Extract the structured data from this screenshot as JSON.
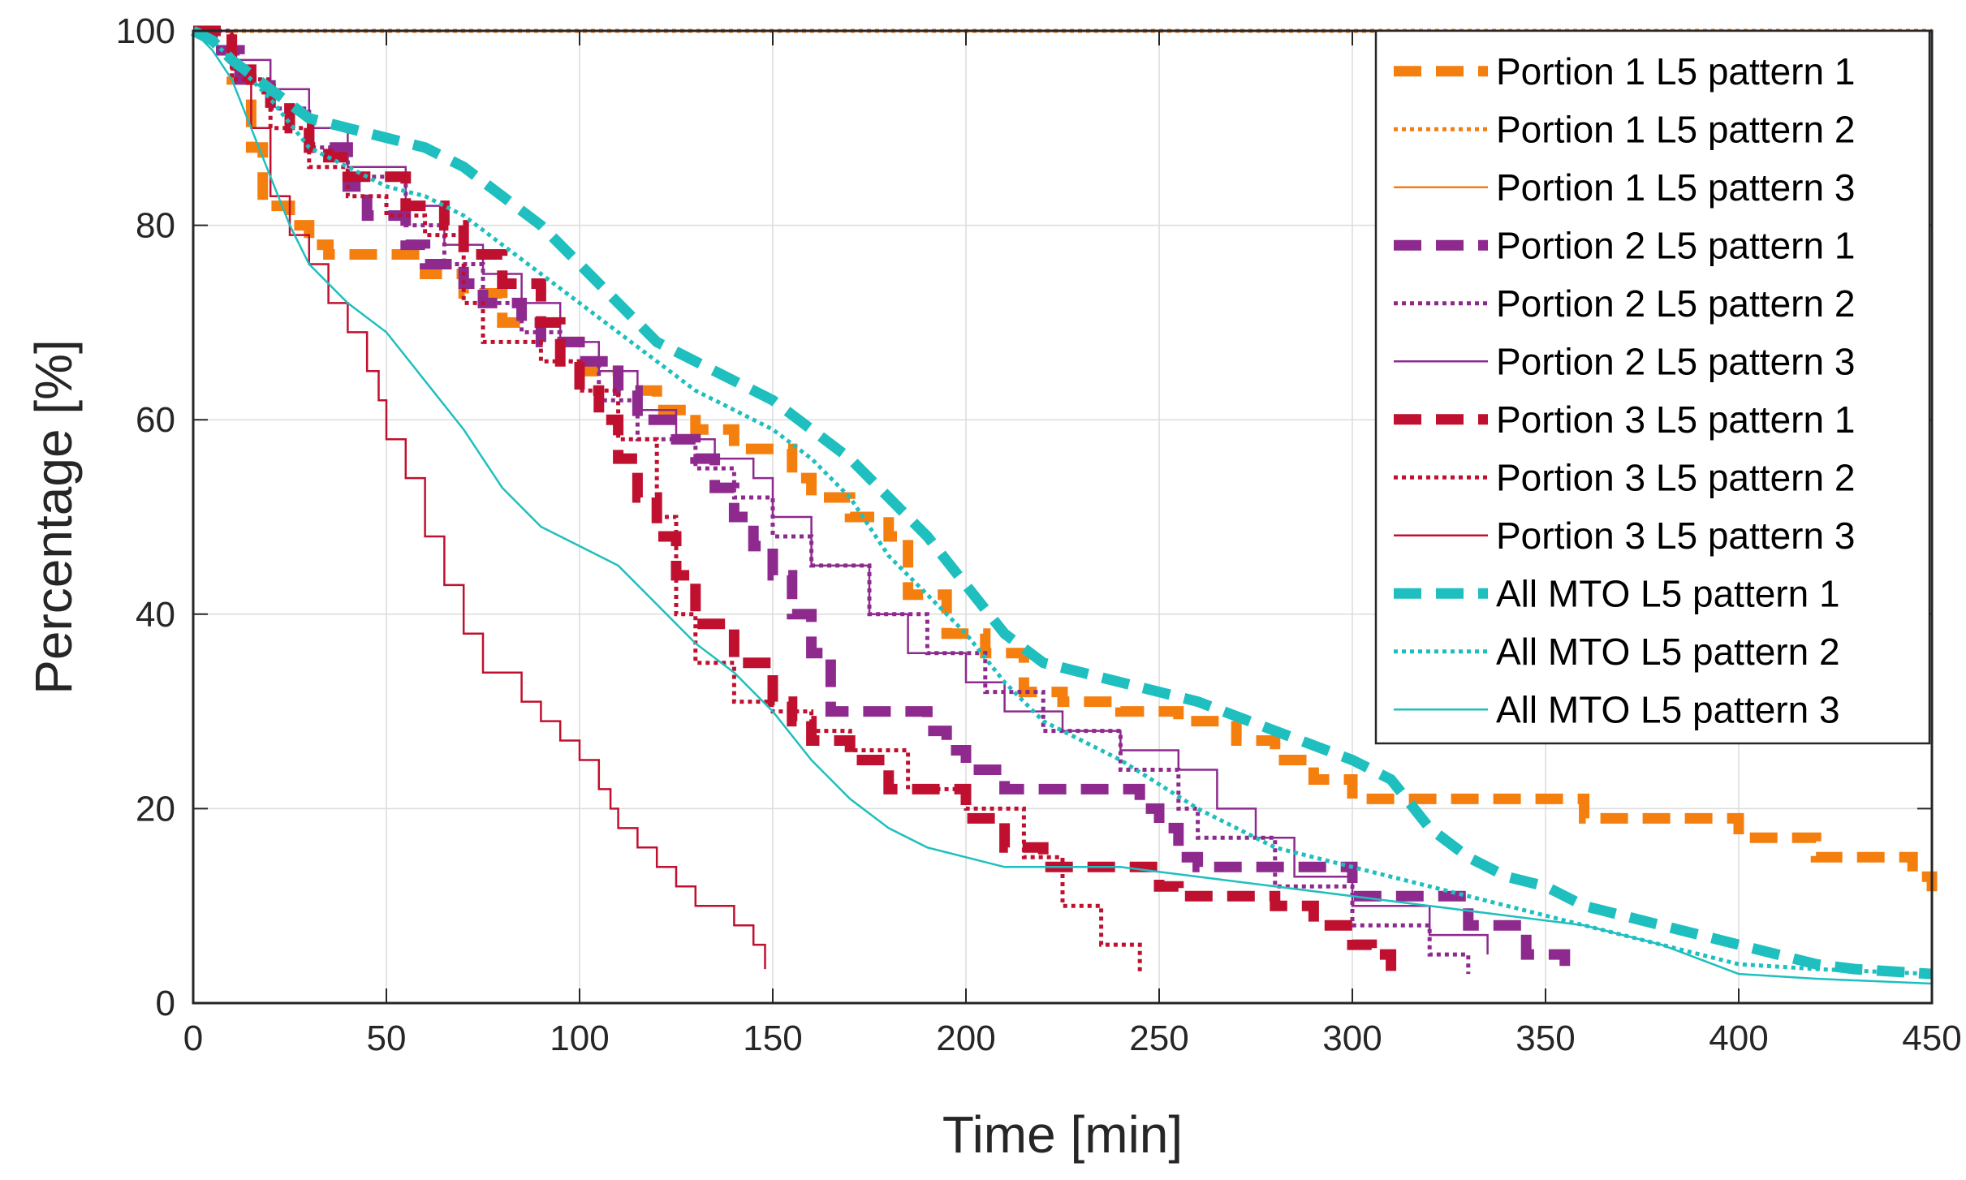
{
  "chart_data": {
    "type": "line",
    "title": "",
    "xlabel": "Time [min]",
    "ylabel": "Percentage [%]",
    "xlim": [
      0,
      450
    ],
    "ylim": [
      0,
      100
    ],
    "xticks": [
      0,
      50,
      100,
      150,
      200,
      250,
      300,
      350,
      400,
      450
    ],
    "yticks": [
      0,
      20,
      40,
      60,
      80,
      100
    ],
    "grid": true,
    "legend_position": "top-right",
    "series": [
      {
        "name": "Portion 1 L5 pattern 1",
        "color": "#F47F0F",
        "style": "dashed-thick",
        "step": true,
        "x": [
          0,
          10,
          15,
          18,
          25,
          30,
          35,
          60,
          70,
          80,
          90,
          100,
          110,
          120,
          130,
          140,
          155,
          160,
          170,
          180,
          185,
          195,
          205,
          215,
          225,
          240,
          255,
          270,
          280,
          290,
          300,
          320,
          340,
          350,
          360,
          385,
          400,
          420,
          445,
          450
        ],
        "y": [
          100,
          95,
          88,
          82,
          80,
          78,
          77,
          75,
          73,
          70,
          68,
          65,
          63,
          61,
          59,
          57,
          54,
          52,
          50,
          48,
          42,
          38,
          36,
          32,
          31,
          30,
          29,
          27,
          25,
          23,
          21,
          21,
          21,
          21,
          19,
          19,
          17,
          15,
          13,
          11.5
        ]
      },
      {
        "name": "Portion 1 L5 pattern 2",
        "color": "#F47F0F",
        "style": "dotted",
        "step": true,
        "x": [
          0,
          450
        ],
        "y": [
          100,
          100
        ]
      },
      {
        "name": "Portion 1 L5 pattern 3",
        "color": "#F47F0F",
        "style": "solid-thin",
        "step": true,
        "x": [
          0,
          450
        ],
        "y": [
          100,
          100
        ]
      },
      {
        "name": "Portion 2 L5 pattern 1",
        "color": "#8E2A8E",
        "style": "dashed-thick",
        "step": true,
        "x": [
          0,
          5,
          12,
          20,
          25,
          30,
          40,
          45,
          55,
          60,
          70,
          75,
          85,
          90,
          100,
          110,
          115,
          125,
          130,
          135,
          140,
          145,
          150,
          155,
          160,
          165,
          185,
          190,
          195,
          200,
          210,
          220,
          230,
          245,
          250,
          255,
          260,
          270,
          290,
          300,
          330,
          345,
          350,
          355
        ],
        "y": [
          100,
          98,
          95,
          92,
          90,
          88,
          84,
          81,
          78,
          76,
          74,
          72,
          70,
          68,
          66,
          63,
          60,
          58,
          56,
          53,
          50,
          47,
          44,
          40,
          36,
          30,
          30,
          28,
          26,
          24,
          22,
          22,
          22,
          20,
          18,
          15,
          14,
          14,
          14,
          11,
          8,
          5,
          5,
          3
        ]
      },
      {
        "name": "Portion 2 L5 pattern 2",
        "color": "#8E2A8E",
        "style": "dotted",
        "step": true,
        "x": [
          0,
          10,
          20,
          30,
          40,
          55,
          65,
          75,
          85,
          95,
          105,
          115,
          130,
          140,
          150,
          160,
          175,
          190,
          205,
          220,
          240,
          255,
          260,
          280,
          300,
          320,
          330
        ],
        "y": [
          100,
          95,
          92,
          88,
          85,
          80,
          76,
          72,
          69,
          66,
          62,
          58,
          55,
          52,
          48,
          45,
          40,
          36,
          32,
          28,
          24,
          20,
          17,
          12,
          8,
          5,
          3
        ]
      },
      {
        "name": "Portion 2 L5 pattern 3",
        "color": "#8E2A8E",
        "style": "solid-thin",
        "step": true,
        "x": [
          0,
          10,
          20,
          30,
          40,
          55,
          65,
          75,
          85,
          95,
          105,
          115,
          125,
          135,
          145,
          150,
          160,
          175,
          185,
          200,
          210,
          225,
          240,
          255,
          265,
          275,
          285,
          300,
          320,
          335
        ],
        "y": [
          100,
          97,
          94,
          90,
          86,
          82,
          78,
          75,
          72,
          68,
          65,
          61,
          58,
          56,
          54,
          50,
          45,
          40,
          36,
          33,
          30,
          28,
          26,
          24,
          20,
          17,
          13,
          10,
          7,
          5
        ]
      },
      {
        "name": "Portion 3 L5 pattern 1",
        "color": "#C0102F",
        "style": "dashed-thick",
        "step": true,
        "x": [
          0,
          10,
          15,
          20,
          25,
          30,
          35,
          40,
          45,
          55,
          65,
          70,
          80,
          90,
          95,
          100,
          105,
          110,
          115,
          120,
          125,
          130,
          140,
          150,
          155,
          160,
          170,
          180,
          200,
          210,
          220,
          240,
          245,
          250,
          255,
          260,
          270,
          280,
          290,
          300,
          305,
          310
        ],
        "y": [
          100,
          96,
          94,
          92,
          90,
          88,
          87,
          85,
          85,
          82,
          80,
          77,
          74,
          70,
          66,
          63,
          60,
          56,
          52,
          48,
          44,
          39,
          35,
          31,
          29,
          27,
          25,
          22,
          19,
          16,
          14,
          14,
          14,
          12,
          11,
          11,
          11,
          10,
          8,
          6,
          5,
          3
        ]
      },
      {
        "name": "Portion 3 L5 pattern 2",
        "color": "#C0102F",
        "style": "dotted",
        "step": true,
        "x": [
          0,
          10,
          20,
          30,
          40,
          50,
          60,
          70,
          75,
          90,
          100,
          110,
          120,
          125,
          130,
          140,
          150,
          160,
          170,
          185,
          200,
          215,
          225,
          235,
          245
        ],
        "y": [
          100,
          95,
          90,
          86,
          83,
          81,
          79,
          72,
          68,
          66,
          63,
          58,
          50,
          40,
          35,
          31,
          30,
          28,
          26,
          22,
          20,
          15,
          10,
          6,
          3
        ]
      },
      {
        "name": "Portion 3 L5 pattern 3",
        "color": "#C0102F",
        "style": "solid-thin",
        "step": true,
        "x": [
          0,
          10,
          15,
          20,
          25,
          30,
          35,
          40,
          45,
          48,
          50,
          55,
          60,
          65,
          70,
          75,
          85,
          90,
          95,
          100,
          105,
          108,
          110,
          115,
          120,
          125,
          130,
          140,
          145,
          148
        ],
        "y": [
          100,
          96,
          90,
          83,
          79,
          76,
          72,
          69,
          65,
          62,
          58,
          54,
          48,
          43,
          38,
          34,
          31,
          29,
          27,
          25,
          22,
          20,
          18,
          16,
          14,
          12,
          10,
          8,
          6,
          3.5
        ]
      },
      {
        "name": "All MTO L5 pattern 1",
        "color": "#1FBFBF",
        "style": "dashed-thick",
        "step": false,
        "x": [
          0,
          5,
          10,
          20,
          30,
          50,
          60,
          70,
          80,
          90,
          100,
          110,
          120,
          130,
          150,
          160,
          170,
          180,
          190,
          200,
          210,
          220,
          240,
          260,
          280,
          300,
          310,
          320,
          330,
          340,
          350,
          360,
          370,
          380,
          390,
          400,
          410,
          420,
          430,
          450
        ],
        "y": [
          100,
          99,
          97,
          94,
          91,
          89,
          88,
          86,
          83,
          80,
          76,
          72,
          68,
          66,
          62,
          59,
          56,
          52,
          48,
          43,
          38,
          35,
          33,
          31,
          28,
          25,
          23,
          18,
          15,
          13,
          12,
          10,
          9,
          8,
          7,
          6,
          5,
          4,
          3.5,
          3
        ]
      },
      {
        "name": "All MTO L5 pattern 2",
        "color": "#1FBFBF",
        "style": "dotted",
        "step": false,
        "x": [
          0,
          5,
          10,
          20,
          30,
          40,
          50,
          60,
          70,
          80,
          90,
          100,
          110,
          120,
          130,
          140,
          150,
          160,
          170,
          180,
          190,
          200,
          210,
          220,
          240,
          260,
          280,
          300,
          320,
          340,
          360,
          380,
          400,
          420,
          450
        ],
        "y": [
          100,
          99,
          97,
          93,
          88,
          86,
          84,
          83,
          81,
          78,
          75,
          72,
          69,
          66,
          63,
          61,
          59,
          56,
          52,
          46,
          42,
          38,
          33,
          29,
          25,
          20,
          16,
          14,
          12,
          10,
          8,
          6,
          4,
          3.5,
          3
        ]
      },
      {
        "name": "All MTO L5 pattern 3",
        "color": "#1FBFBF",
        "style": "solid-thin",
        "step": false,
        "x": [
          0,
          5,
          10,
          15,
          20,
          25,
          30,
          40,
          50,
          60,
          70,
          80,
          90,
          100,
          110,
          120,
          130,
          140,
          150,
          160,
          170,
          180,
          190,
          200,
          210,
          220,
          240,
          260,
          280,
          300,
          320,
          340,
          360,
          380,
          400,
          420,
          450
        ],
        "y": [
          100,
          98,
          95,
          90,
          85,
          80,
          76,
          72,
          69,
          64,
          59,
          53,
          49,
          47,
          45,
          41,
          37,
          34,
          30,
          25,
          21,
          18,
          16,
          15,
          14,
          14,
          14,
          13,
          12,
          11,
          10,
          9,
          8,
          6,
          3,
          2.5,
          2
        ]
      }
    ]
  }
}
